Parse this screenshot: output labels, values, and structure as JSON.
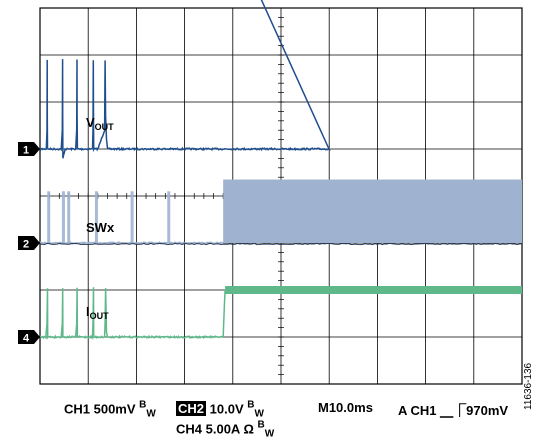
{
  "chart_data": {
    "type": "line",
    "grid": true,
    "divisions": {
      "x": 10,
      "y": 8
    },
    "time_per_div_ms": 10.0,
    "series": [
      {
        "name": "VOUT",
        "channel": "CH1",
        "marker": "1",
        "color": "#1f4e8c",
        "scale": "500mV",
        "ground_div": 3.0,
        "x": [
          0,
          1.3,
          1.45,
          1.5,
          1.52,
          1.55,
          2.0,
          4.4,
          4.62,
          4.68,
          4.7,
          4.75,
          5.2,
          7.4,
          7.62,
          7.68,
          7.7,
          7.75,
          8.5,
          10.9,
          11.0,
          11.05,
          11.1,
          11.15,
          12.0,
          13.4,
          13.5,
          13.6,
          13.8,
          14.0,
          15.0,
          20.0,
          25.0,
          30.0,
          40.0,
          50.0,
          55.0,
          60.0
        ],
        "y": [
          0,
          0,
          0.4,
          1.9,
          0.7,
          0,
          0,
          0,
          0.4,
          1.9,
          0.7,
          -0.2,
          0,
          0,
          0.4,
          1.9,
          0.7,
          0,
          0,
          0,
          0.4,
          1.9,
          0.7,
          0,
          0,
          0.4,
          1.9,
          0.7,
          0.2,
          0,
          0,
          0,
          0,
          0,
          0,
          0,
          0,
          0
        ],
        "y_after_step": {
          "x_start": 38.0,
          "x_ramp_end": 38.8,
          "level": 4.78
        }
      },
      {
        "name": "SWx",
        "channel": "CH2",
        "marker": "2",
        "color": "#9fb3d1",
        "scale": "10.0V",
        "ground_div": 5.0,
        "bursts": [
          {
            "x": 1.5,
            "width": 0.45,
            "height": 1.1
          },
          {
            "x": 4.55,
            "width": 0.25,
            "height": 1.1
          },
          {
            "x": 5.65,
            "width": 0.3,
            "height": 1.1
          },
          {
            "x": 11.4,
            "width": 0.35,
            "height": 1.1
          },
          {
            "x": 18.8,
            "width": 0.35,
            "height": 1.1
          },
          {
            "x": 26.4,
            "width": 0.3,
            "height": 1.1
          }
        ],
        "continuous_from": 38.0,
        "continuous_height": 1.35
      },
      {
        "name": "IOUT",
        "channel": "CH4",
        "marker": "4",
        "color": "#5fb88a",
        "scale": "5.00A",
        "ground_div": 7.0,
        "x": [
          0,
          1.2,
          1.45,
          1.55,
          1.6,
          2.0,
          4.4,
          4.62,
          4.7,
          4.75,
          5.2,
          7.4,
          7.62,
          7.7,
          7.75,
          8.5,
          10.9,
          11.0,
          11.1,
          11.15,
          12.0,
          13.4,
          13.5,
          13.6,
          13.8,
          14.0,
          15.0,
          25.0,
          38.0
        ],
        "y": [
          0,
          0,
          0.3,
          1.05,
          0,
          0,
          0,
          0.3,
          1.05,
          0,
          0,
          0,
          0.3,
          1.05,
          0,
          0,
          0,
          0.3,
          1.05,
          0,
          0,
          0,
          0.3,
          1.05,
          0.1,
          0,
          0,
          0,
          0
        ],
        "y_after_step": {
          "x_start": 38.0,
          "x_ramp_end": 38.4,
          "level": 1.0,
          "band": 0.17
        }
      }
    ],
    "labels": [
      {
        "text": "V",
        "sub": "OUT",
        "series": "VOUT"
      },
      {
        "text": "SWx",
        "sub": "",
        "series": "SWx"
      },
      {
        "text": "I",
        "sub": "OUT",
        "series": "IOUT"
      }
    ]
  },
  "readout": {
    "ch1": "CH1 500mV",
    "bw": "B",
    "bw_sub": "W",
    "ch2_tag": "CH2",
    "ch2_value": "10.0V",
    "timebase": "M10.0ms",
    "trigger_prefix": "A CH1",
    "trigger_symbol": "⎽⎾",
    "trigger_value": "970mV",
    "ch4": "CH4 5.00A Ω"
  },
  "figure_id": "11636-136"
}
